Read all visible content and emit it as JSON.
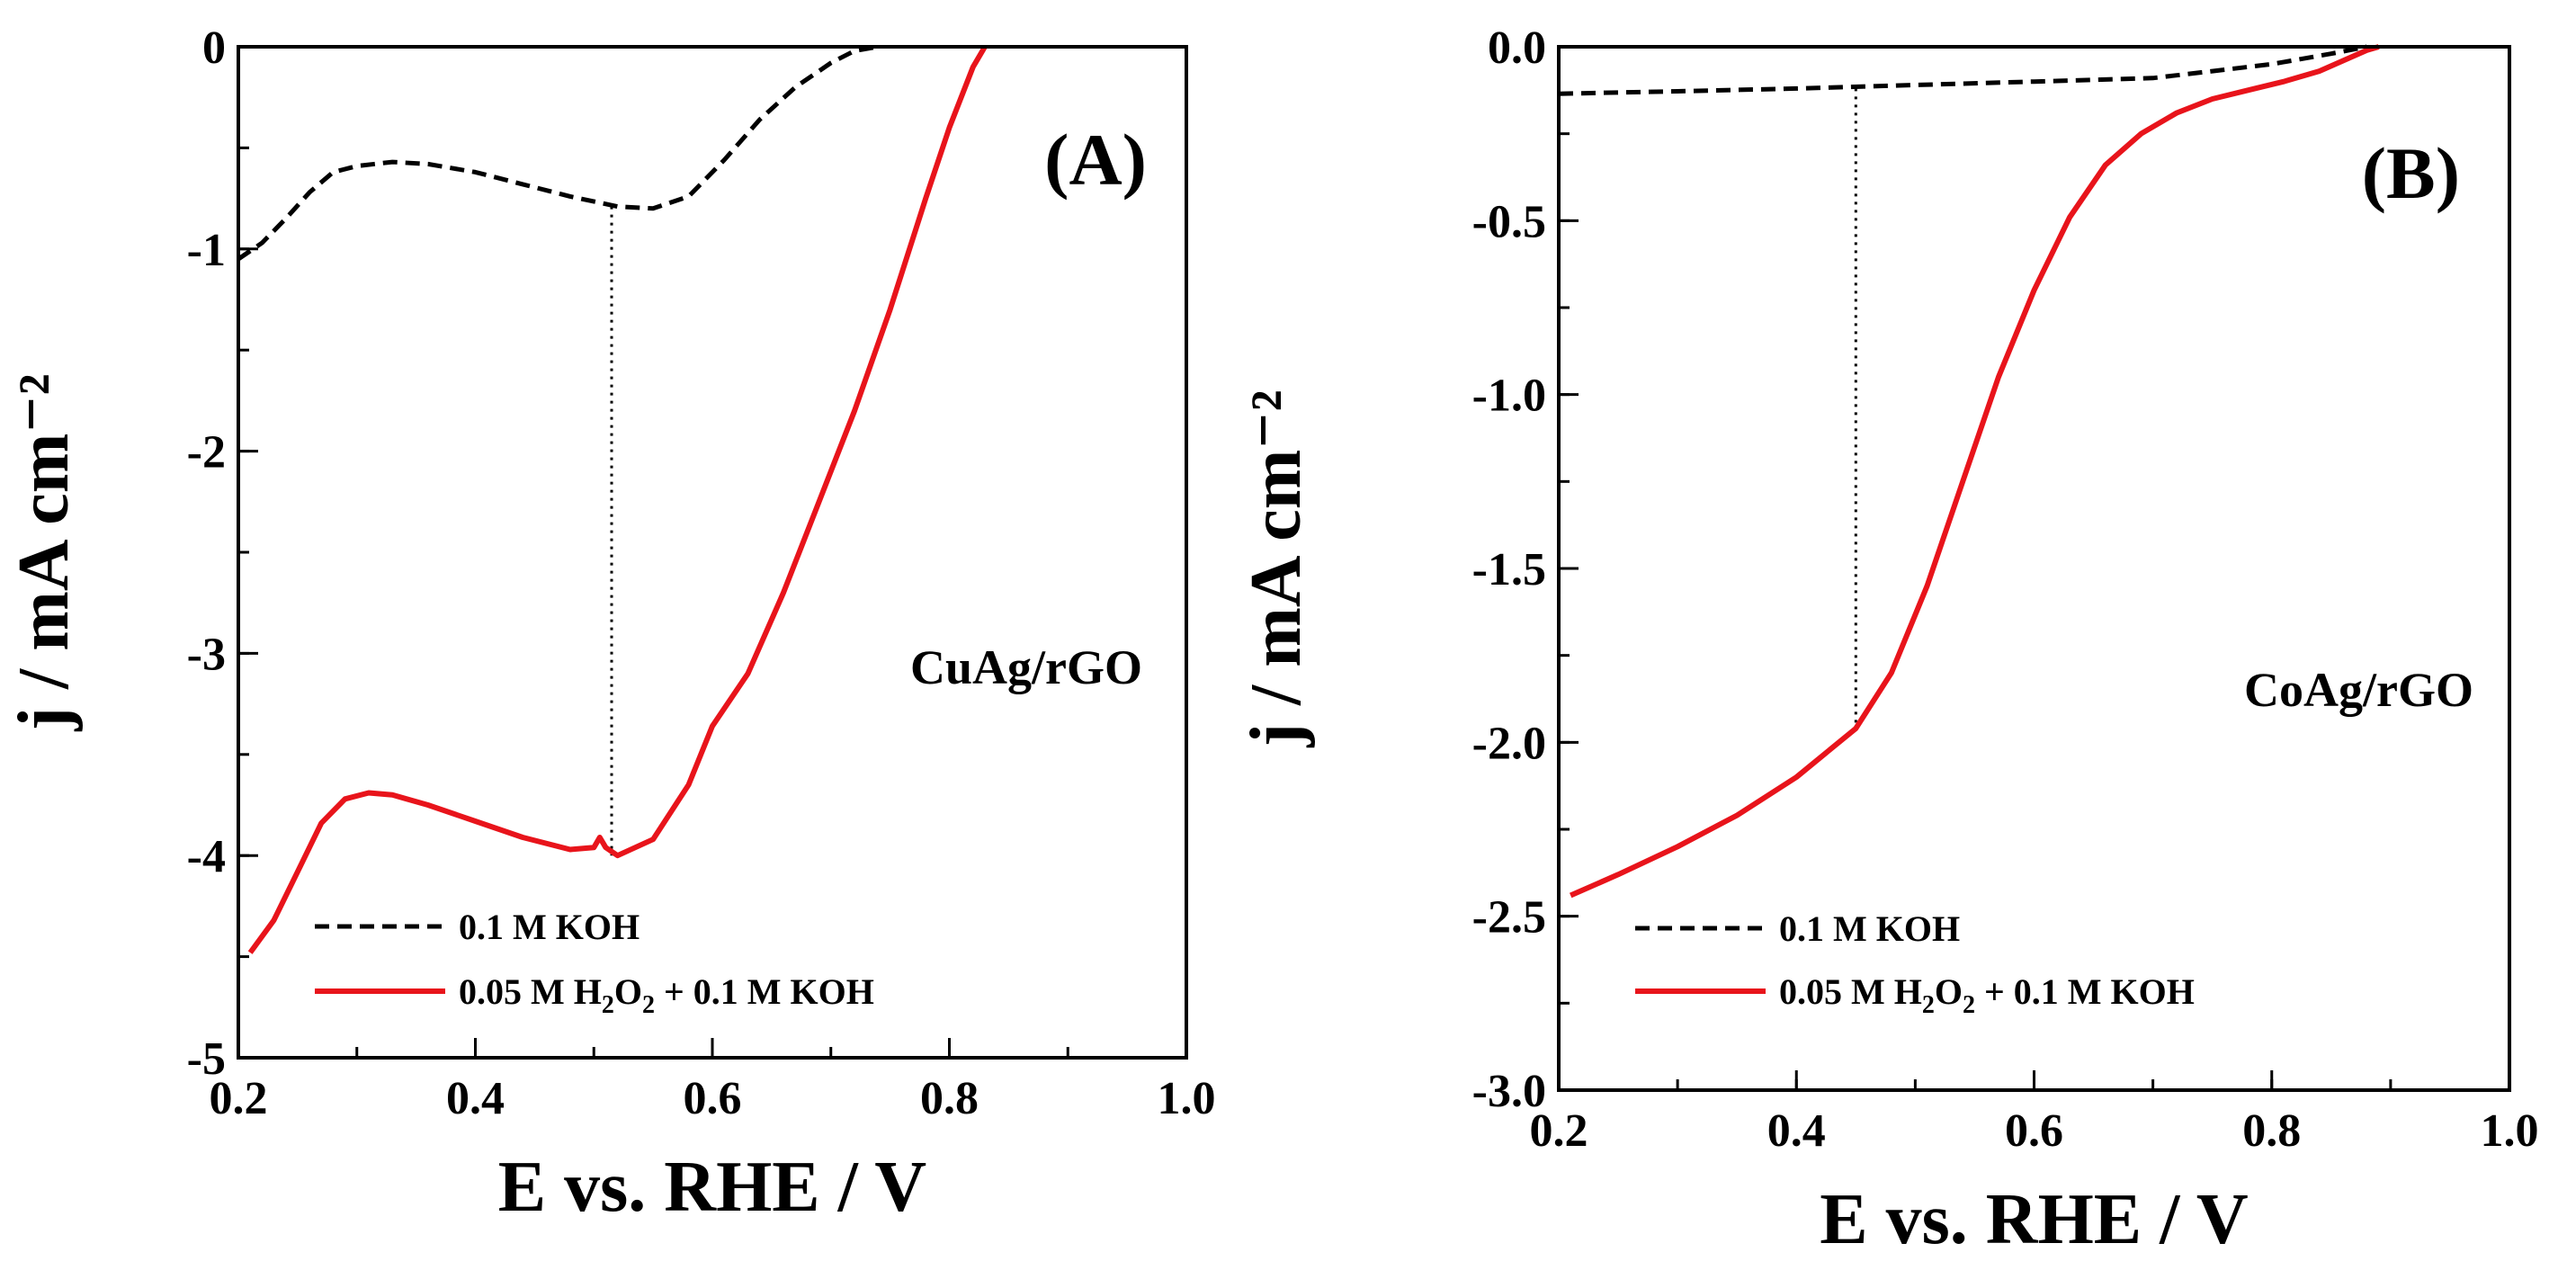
{
  "chart_data": [
    {
      "type": "line",
      "panel_label": "(A)",
      "sample_label": "CuAg/rGO",
      "xlabel": "E vs. RHE / V",
      "ylabel": "j / mA cm⁻²",
      "xlim": [
        0.2,
        1.0
      ],
      "ylim": [
        -5,
        0
      ],
      "xticks": [
        0.2,
        0.4,
        0.6,
        0.8,
        1.0
      ],
      "xtick_labels": [
        "0.2",
        "0.4",
        "0.6",
        "0.8",
        "1.0"
      ],
      "yticks": [
        0,
        -1,
        -2,
        -3,
        -4,
        -5
      ],
      "ytick_labels": [
        "0",
        "-1",
        "-2",
        "-3",
        "-4",
        "-5"
      ],
      "legend_location": "bottom-left",
      "series": [
        {
          "name": "0.1 M KOH",
          "style": "dashed",
          "color": "#000000",
          "x": [
            0.2,
            0.22,
            0.24,
            0.26,
            0.28,
            0.3,
            0.33,
            0.36,
            0.4,
            0.44,
            0.48,
            0.52,
            0.55,
            0.58,
            0.61,
            0.64,
            0.67,
            0.7,
            0.72,
            0.74
          ],
          "y": [
            -1.05,
            -0.97,
            -0.85,
            -0.72,
            -0.62,
            -0.59,
            -0.57,
            -0.58,
            -0.62,
            -0.68,
            -0.74,
            -0.79,
            -0.8,
            -0.74,
            -0.56,
            -0.36,
            -0.2,
            -0.08,
            -0.02,
            0.0
          ]
        },
        {
          "name": "0.05 M H2O2 + 0.1 M KOH",
          "legend_main": "0.05 M H",
          "legend_sub1": "2",
          "legend_mid": "O",
          "legend_sub2": "2",
          "legend_tail": " + 0.1 M KOH",
          "style": "solid",
          "color": "#e8141b",
          "x": [
            0.21,
            0.23,
            0.25,
            0.27,
            0.29,
            0.31,
            0.33,
            0.36,
            0.4,
            0.44,
            0.48,
            0.5,
            0.505,
            0.51,
            0.52,
            0.55,
            0.58,
            0.6,
            0.63,
            0.66,
            0.69,
            0.72,
            0.75,
            0.78,
            0.8,
            0.82,
            0.83
          ],
          "y": [
            -4.48,
            -4.32,
            -4.08,
            -3.84,
            -3.72,
            -3.69,
            -3.7,
            -3.75,
            -3.83,
            -3.91,
            -3.97,
            -3.96,
            -3.91,
            -3.96,
            -4.0,
            -3.92,
            -3.65,
            -3.36,
            -3.1,
            -2.7,
            -2.25,
            -1.8,
            -1.3,
            -0.75,
            -0.4,
            -0.1,
            0.0
          ]
        }
      ],
      "annotations": [
        {
          "type": "vertical-dotted-line",
          "x": 0.515,
          "y_from": -0.79,
          "y_to": -4.0
        }
      ]
    },
    {
      "type": "line",
      "panel_label": "(B)",
      "sample_label": "CoAg/rGO",
      "xlabel": "E vs. RHE / V",
      "ylabel": "j / mA cm⁻²",
      "xlim": [
        0.2,
        1.0
      ],
      "ylim": [
        -3.0,
        0.0
      ],
      "xticks": [
        0.2,
        0.4,
        0.6,
        0.8,
        1.0
      ],
      "xtick_labels": [
        "0.2",
        "0.4",
        "0.6",
        "0.8",
        "1.0"
      ],
      "yticks": [
        0.0,
        -0.5,
        -1.0,
        -1.5,
        -2.0,
        -2.5,
        -3.0
      ],
      "ytick_labels": [
        "0.0",
        "-0.5",
        "-1.0",
        "-1.5",
        "-2.0",
        "-2.5",
        "-3.0"
      ],
      "legend_location": "bottom-left",
      "series": [
        {
          "name": "0.1 M KOH",
          "style": "dashed",
          "color": "#000000",
          "x": [
            0.2,
            0.3,
            0.4,
            0.5,
            0.6,
            0.7,
            0.75,
            0.8,
            0.85,
            0.88
          ],
          "y": [
            -0.135,
            -0.128,
            -0.12,
            -0.11,
            -0.1,
            -0.09,
            -0.07,
            -0.05,
            -0.02,
            0.0
          ]
        },
        {
          "name": "0.05 M H2O2 + 0.1 M KOH",
          "legend_main": "0.05 M H",
          "legend_sub1": "2",
          "legend_mid": "O",
          "legend_sub2": "2",
          "legend_tail": " + 0.1 M KOH",
          "style": "solid",
          "color": "#e8141b",
          "x": [
            0.21,
            0.25,
            0.3,
            0.35,
            0.4,
            0.45,
            0.48,
            0.51,
            0.54,
            0.57,
            0.6,
            0.63,
            0.66,
            0.69,
            0.72,
            0.75,
            0.78,
            0.81,
            0.84,
            0.86,
            0.88,
            0.89
          ],
          "y": [
            -2.44,
            -2.38,
            -2.3,
            -2.21,
            -2.1,
            -1.96,
            -1.8,
            -1.55,
            -1.25,
            -0.95,
            -0.7,
            -0.49,
            -0.34,
            -0.25,
            -0.19,
            -0.15,
            -0.125,
            -0.1,
            -0.07,
            -0.04,
            -0.01,
            0.0
          ]
        }
      ],
      "annotations": [
        {
          "type": "vertical-dotted-line",
          "x": 0.45,
          "y_from": -0.12,
          "y_to": -1.96
        }
      ]
    }
  ]
}
